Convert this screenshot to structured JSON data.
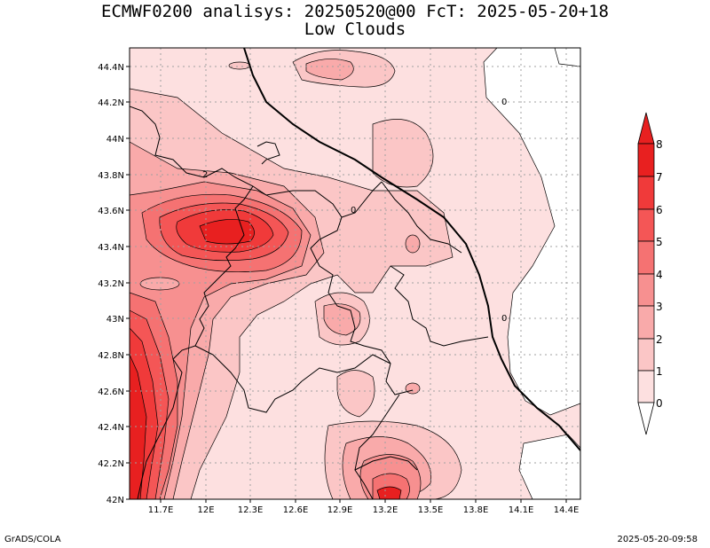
{
  "title": {
    "line1": "ECMWF0200 analisys: 20250520@00 FcT: 2025-05-20+18",
    "line2": "Low Clouds"
  },
  "footer": {
    "left": "GrADS/COLA",
    "right": "2025-05-20-09:58"
  },
  "map": {
    "lat_labels": [
      "44.4N",
      "44.2N",
      "44N",
      "43.8N",
      "43.6N",
      "43.4N",
      "43.2N",
      "43N",
      "42.8N",
      "42.6N",
      "42.4N",
      "42.2N",
      "42N"
    ],
    "lon_labels": [
      "11.7E",
      "12E",
      "12.3E",
      "12.6E",
      "12.9E",
      "13.2E",
      "13.5E",
      "13.8E",
      "14.1E",
      "14.4E"
    ],
    "contour_labels": [
      "2",
      "0",
      "0",
      "0"
    ]
  },
  "colorbar": {
    "levels": [
      "8",
      "7",
      "6",
      "5",
      "4",
      "3",
      "2",
      "1",
      "0"
    ],
    "colors": [
      "#e82020",
      "#f03a3a",
      "#f45656",
      "#f57272",
      "#f79090",
      "#f9aaaa",
      "#fbc6c6",
      "#fde0e0",
      "#ffffff"
    ]
  },
  "colors": {
    "background": "#ffffff",
    "base_fill": "#fde0e0",
    "grid": "#a0a0a0",
    "border": "#000000"
  }
}
